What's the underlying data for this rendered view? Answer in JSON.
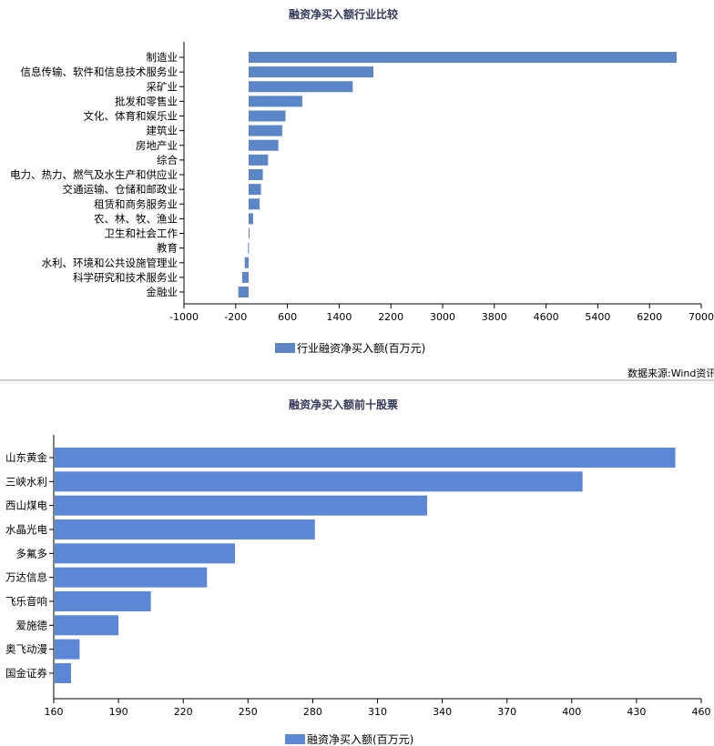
{
  "chart_data": [
    {
      "type": "bar",
      "orientation": "horizontal",
      "title": "融资净买入额行业比较",
      "categories": [
        "制造业",
        "信息传输、软件和信息技术服务业",
        "采矿业",
        "批发和零售业",
        "文化、体育和娱乐业",
        "建筑业",
        "房地产业",
        "综合",
        "电力、热力、燃气及水生产和供应业",
        "交通运输、仓储和邮政业",
        "租赁和商务服务业",
        "农、林、牧、渔业",
        "卫生和社会工作",
        "教育",
        "水利、环境和公共设施管理业",
        "科学研究和技术服务业",
        "金融业"
      ],
      "series": [
        {
          "name": "行业融资净买入额(百万元)",
          "values": [
            6620,
            1930,
            1610,
            830,
            570,
            520,
            460,
            300,
            220,
            190,
            170,
            70,
            10,
            -10,
            -60,
            -100,
            -160
          ]
        }
      ],
      "xlim": [
        -1000,
        7000
      ],
      "xticks": [
        -1000,
        -200,
        600,
        1400,
        2200,
        3000,
        3800,
        4600,
        5400,
        6200,
        7000
      ],
      "color": "#5b87c9",
      "legend_position": "bottom-center",
      "grid": false
    },
    {
      "type": "bar",
      "orientation": "horizontal",
      "title": "融资净买入额前十股票",
      "categories": [
        "山东黄金",
        "三峡水利",
        "西山煤电",
        "水晶光电",
        "多氟多",
        "万达信息",
        "飞乐音响",
        "爱施德",
        "奥飞动漫",
        "国金证券"
      ],
      "series": [
        {
          "name": "融资净买入额(百万元)",
          "values": [
            448,
            405,
            333,
            281,
            244,
            231,
            205,
            190,
            172,
            168
          ]
        }
      ],
      "xlim": [
        160,
        460
      ],
      "xticks": [
        160,
        190,
        220,
        250,
        280,
        310,
        340,
        370,
        400,
        430,
        460
      ],
      "color": "#5b87d6",
      "legend_position": "bottom-center",
      "grid": false
    }
  ],
  "source_note": "数据来源:Wind资讯"
}
